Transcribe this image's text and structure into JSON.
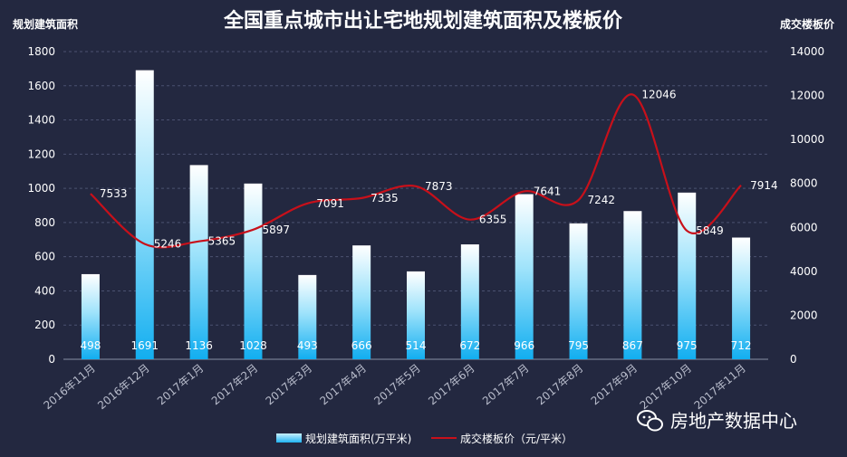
{
  "chart_data": {
    "type": "bar",
    "title": "全国重点城市出让宅地规划建筑面积及楼板价",
    "ylabel_left": "规划建筑面积",
    "ylabel_right": "成交楼板价",
    "ylim_left": [
      0,
      1800
    ],
    "ylim_right": [
      0,
      14000
    ],
    "yticks_left": [
      0,
      200,
      400,
      600,
      800,
      1000,
      1200,
      1400,
      1600,
      1800
    ],
    "yticks_right": [
      0,
      2000,
      4000,
      6000,
      8000,
      10000,
      12000,
      14000
    ],
    "grid": true,
    "legend_position": "bottom",
    "categories": [
      "2016年11月",
      "2016年12月",
      "2017年1月",
      "2017年2月",
      "2017年3月",
      "2017年4月",
      "2017年5月",
      "2017年6月",
      "2017年7月",
      "2017年8月",
      "2017年9月",
      "2017年10月",
      "2017年11月"
    ],
    "series": [
      {
        "name": "规划建筑面积(万平米)",
        "type": "bar",
        "axis": "left",
        "color": "#3fc6f5",
        "values": [
          498,
          1691,
          1136,
          1028,
          493,
          666,
          514,
          672,
          966,
          795,
          867,
          975,
          712
        ]
      },
      {
        "name": "成交楼板价（元/平米）",
        "type": "line",
        "axis": "right",
        "color": "#c8101a",
        "values": [
          7533,
          5246,
          5365,
          5897,
          7091,
          7335,
          7873,
          6355,
          7641,
          7242,
          12046,
          5849,
          7914
        ]
      }
    ]
  },
  "watermark": "房地产数据中心"
}
